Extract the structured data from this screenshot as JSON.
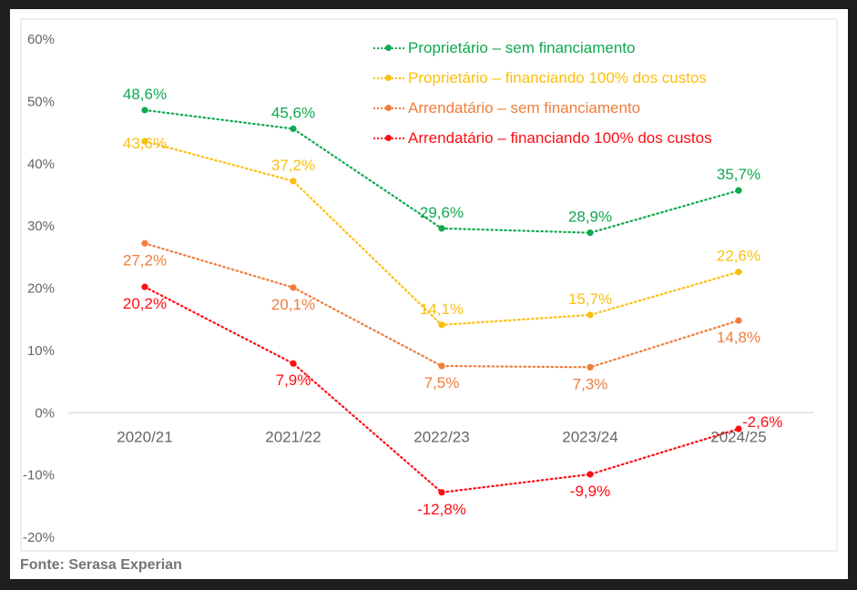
{
  "chart_data": {
    "type": "line",
    "title": "",
    "xlabel": "",
    "ylabel": "",
    "categories": [
      "2020/21",
      "2021/22",
      "2022/23",
      "2023/24",
      "2024/25"
    ],
    "ylim": [
      -20,
      60
    ],
    "yticks": [
      60,
      50,
      40,
      30,
      20,
      10,
      0,
      -10,
      -20
    ],
    "ytick_labels": [
      "60%",
      "50%",
      "40%",
      "30%",
      "20%",
      "10%",
      "0%",
      "-10%",
      "-20%"
    ],
    "grid": false,
    "zero_line": true,
    "legend_position": "top-right",
    "line_style": "dotted",
    "series": [
      {
        "name": "Proprietário – sem financiamento",
        "color": "#0fa94f",
        "values": [
          48.6,
          45.6,
          29.6,
          28.9,
          35.7
        ],
        "labels": [
          "48,6%",
          "45,6%",
          "29,6%",
          "28,9%",
          "35,7%"
        ],
        "label_position": [
          "above",
          "above",
          "above",
          "above",
          "above"
        ]
      },
      {
        "name": "Proprietário – financiando 100% dos custos",
        "color": "#fbbf0e",
        "values": [
          43.6,
          37.2,
          14.1,
          15.7,
          22.6
        ],
        "labels": [
          "43,6%",
          "37,2%",
          "14,1%",
          "15,7%",
          "22,6%"
        ],
        "label_position": [
          "on",
          "above",
          "above",
          "above",
          "above"
        ]
      },
      {
        "name": "Arrendatário – sem financiamento",
        "color": "#ef7d3b",
        "values": [
          27.2,
          20.1,
          7.5,
          7.3,
          14.8
        ],
        "labels": [
          "27,2%",
          "20,1%",
          "7,5%",
          "7,3%",
          "14,8%"
        ],
        "label_position": [
          "below",
          "below",
          "below",
          "below",
          "below"
        ]
      },
      {
        "name": "Arrendatário – financiando 100% dos custos",
        "color": "#fe0d13",
        "values": [
          20.2,
          7.9,
          -12.8,
          -9.9,
          -2.6
        ],
        "labels": [
          "20,2%",
          "7,9%",
          "-12,8%",
          "-9,9%",
          "-2,6%"
        ],
        "label_position": [
          "below",
          "below",
          "below",
          "below",
          "right"
        ]
      }
    ]
  },
  "source": "Fonte: Serasa Experian"
}
